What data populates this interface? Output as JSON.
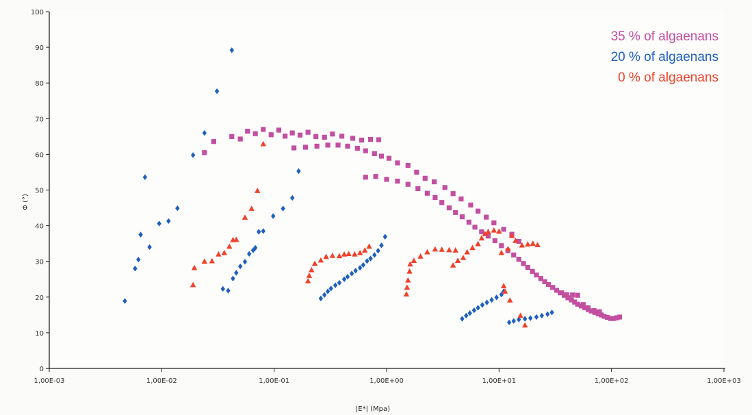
{
  "chart_data": {
    "type": "scatter",
    "title": "",
    "xlabel": "|E*| (Mpa)",
    "ylabel": "Φ (°)",
    "x_scale": "log",
    "xlim": [
      0.001,
      1000
    ],
    "ylim": [
      0,
      100
    ],
    "x_ticks": [
      0.001,
      0.01,
      0.1,
      1,
      10,
      100,
      1000
    ],
    "x_tick_labels": [
      "1,00E-03",
      "1,00E-02",
      "1,00E-01",
      "1,00E+00",
      "1,00E+01",
      "1,00E+02",
      "1,00E+03"
    ],
    "y_ticks": [
      0,
      10,
      20,
      30,
      40,
      50,
      60,
      70,
      80,
      90,
      100
    ],
    "y_tick_labels": [
      "0",
      "10",
      "20",
      "30",
      "40",
      "50",
      "60",
      "70",
      "80",
      "90",
      "100"
    ],
    "grid": false,
    "legend": "top-right",
    "series": [
      {
        "name": "35 % of algaenans",
        "marker": "square",
        "color": "#c24fa0",
        "points": [
          [
            0.024,
            60.5
          ],
          [
            0.029,
            63.6
          ],
          [
            0.042,
            65.0
          ],
          [
            0.05,
            64.3
          ],
          [
            0.058,
            66.5
          ],
          [
            0.068,
            65.8
          ],
          [
            0.08,
            67.0
          ],
          [
            0.094,
            65.5
          ],
          [
            0.11,
            66.8
          ],
          [
            0.125,
            65.1
          ],
          [
            0.145,
            66.0
          ],
          [
            0.17,
            65.4
          ],
          [
            0.2,
            66.2
          ],
          [
            0.235,
            65.0
          ],
          [
            0.28,
            64.8
          ],
          [
            0.33,
            65.7
          ],
          [
            0.4,
            65.1
          ],
          [
            0.5,
            64.5
          ],
          [
            0.6,
            64.0
          ],
          [
            0.72,
            64.2
          ],
          [
            0.85,
            64.1
          ],
          [
            0.15,
            61.8
          ],
          [
            0.19,
            62.0
          ],
          [
            0.24,
            62.3
          ],
          [
            0.3,
            62.6
          ],
          [
            0.37,
            62.6
          ],
          [
            0.45,
            62.3
          ],
          [
            0.55,
            61.7
          ],
          [
            0.65,
            61.0
          ],
          [
            0.78,
            60.2
          ],
          [
            0.9,
            59.5
          ],
          [
            1.05,
            58.9
          ],
          [
            1.25,
            57.6
          ],
          [
            1.55,
            56.9
          ],
          [
            1.85,
            55.0
          ],
          [
            2.2,
            53.3
          ],
          [
            2.65,
            52.3
          ],
          [
            3.3,
            50.7
          ],
          [
            3.9,
            49.0
          ],
          [
            4.6,
            47.5
          ],
          [
            5.6,
            45.8
          ],
          [
            6.5,
            44.1
          ],
          [
            7.7,
            42.4
          ],
          [
            9.0,
            40.8
          ],
          [
            11.0,
            39.0
          ],
          [
            13.0,
            37.6
          ],
          [
            15.0,
            35.6
          ],
          [
            0.65,
            53.6
          ],
          [
            0.8,
            53.8
          ],
          [
            1.0,
            53.0
          ],
          [
            1.25,
            52.5
          ],
          [
            1.55,
            51.6
          ],
          [
            1.9,
            50.4
          ],
          [
            2.3,
            49.1
          ],
          [
            2.7,
            47.9
          ],
          [
            3.1,
            46.5
          ],
          [
            3.6,
            45.0
          ],
          [
            4.1,
            43.7
          ],
          [
            4.7,
            42.5
          ],
          [
            5.4,
            41.0
          ],
          [
            6.1,
            39.6
          ],
          [
            7.0,
            38.3
          ],
          [
            8.0,
            37.1
          ],
          [
            9.2,
            35.8
          ],
          [
            10.5,
            34.4
          ],
          [
            12.0,
            33.0
          ],
          [
            13.5,
            31.8
          ],
          [
            15.0,
            30.6
          ],
          [
            16.5,
            29.4
          ],
          [
            18.0,
            28.3
          ],
          [
            19.8,
            27.2
          ],
          [
            21.5,
            26.2
          ],
          [
            23.5,
            25.2
          ],
          [
            25.5,
            24.3
          ],
          [
            27.5,
            23.5
          ],
          [
            30.0,
            22.7
          ],
          [
            32.5,
            21.9
          ],
          [
            35.0,
            21.2
          ],
          [
            38.0,
            20.5
          ],
          [
            41.0,
            19.8
          ],
          [
            44.0,
            19.2
          ],
          [
            47.0,
            18.6
          ],
          [
            50.0,
            18.0
          ],
          [
            54.0,
            17.5
          ],
          [
            58.0,
            17.0
          ],
          [
            62.0,
            16.5
          ],
          [
            66.0,
            16.1
          ],
          [
            71.0,
            15.7
          ],
          [
            76.0,
            15.3
          ],
          [
            81.0,
            15.0
          ],
          [
            86.0,
            14.6
          ],
          [
            92.0,
            14.3
          ],
          [
            98.0,
            14.0
          ],
          [
            105.0,
            14.0
          ],
          [
            112.0,
            14.2
          ],
          [
            118.0,
            14.4
          ],
          [
            36.0,
            21.2
          ],
          [
            40.0,
            20.7
          ],
          [
            45.0,
            20.6
          ],
          [
            50.0,
            20.5
          ],
          [
            56.0,
            17.9
          ],
          [
            62.0,
            17.0
          ],
          [
            70.0,
            16.2
          ],
          [
            78.0,
            15.9
          ]
        ]
      },
      {
        "name": "20 % of algaenans",
        "marker": "diamond",
        "color": "#1f5fbf",
        "points": [
          [
            0.0047,
            18.9
          ],
          [
            0.0058,
            28.0
          ],
          [
            0.0062,
            30.5
          ],
          [
            0.0065,
            37.5
          ],
          [
            0.0071,
            53.6
          ],
          [
            0.0078,
            34.0
          ],
          [
            0.0095,
            40.6
          ],
          [
            0.0115,
            41.3
          ],
          [
            0.0138,
            44.9
          ],
          [
            0.019,
            59.8
          ],
          [
            0.024,
            66.0
          ],
          [
            0.031,
            77.7
          ],
          [
            0.042,
            89.2
          ],
          [
            0.035,
            22.3
          ],
          [
            0.039,
            21.8
          ],
          [
            0.043,
            25.2
          ],
          [
            0.046,
            26.8
          ],
          [
            0.05,
            28.6
          ],
          [
            0.055,
            29.9
          ],
          [
            0.06,
            32.1
          ],
          [
            0.065,
            33.1
          ],
          [
            0.068,
            33.8
          ],
          [
            0.073,
            38.3
          ],
          [
            0.08,
            38.5
          ],
          [
            0.098,
            42.7
          ],
          [
            0.12,
            44.8
          ],
          [
            0.145,
            47.8
          ],
          [
            0.165,
            55.3
          ],
          [
            0.26,
            19.6
          ],
          [
            0.28,
            20.6
          ],
          [
            0.3,
            21.6
          ],
          [
            0.32,
            22.4
          ],
          [
            0.35,
            23.3
          ],
          [
            0.38,
            24.0
          ],
          [
            0.42,
            25.0
          ],
          [
            0.45,
            25.7
          ],
          [
            0.49,
            26.6
          ],
          [
            0.53,
            27.4
          ],
          [
            0.58,
            28.2
          ],
          [
            0.62,
            29.0
          ],
          [
            0.67,
            30.1
          ],
          [
            0.72,
            30.8
          ],
          [
            0.78,
            31.8
          ],
          [
            0.84,
            33.0
          ],
          [
            0.9,
            34.5
          ],
          [
            0.97,
            36.9
          ],
          [
            4.7,
            13.9
          ],
          [
            5.1,
            14.8
          ],
          [
            5.5,
            15.5
          ],
          [
            6.0,
            16.3
          ],
          [
            6.5,
            17.0
          ],
          [
            7.1,
            17.8
          ],
          [
            7.8,
            18.5
          ],
          [
            8.6,
            19.2
          ],
          [
            9.5,
            19.9
          ],
          [
            10.5,
            20.7
          ],
          [
            11.0,
            21.6
          ],
          [
            12.3,
            12.9
          ],
          [
            13.5,
            13.3
          ],
          [
            15.0,
            13.7
          ],
          [
            17.0,
            13.9
          ],
          [
            19.0,
            14.1
          ],
          [
            21.5,
            14.4
          ],
          [
            24.0,
            14.8
          ],
          [
            27.0,
            15.2
          ],
          [
            29.5,
            15.7
          ]
        ]
      },
      {
        "name": "0 % of algaenans",
        "marker": "triangle",
        "color": "#f0422b",
        "points": [
          [
            0.019,
            23.4
          ],
          [
            0.0195,
            28.2
          ],
          [
            0.024,
            30.0
          ],
          [
            0.028,
            30.1
          ],
          [
            0.032,
            32.0
          ],
          [
            0.036,
            32.4
          ],
          [
            0.04,
            34.2
          ],
          [
            0.043,
            36.0
          ],
          [
            0.046,
            36.1
          ],
          [
            0.055,
            42.3
          ],
          [
            0.063,
            44.8
          ],
          [
            0.071,
            49.8
          ],
          [
            0.08,
            62.9
          ],
          [
            0.2,
            24.5
          ],
          [
            0.205,
            26.0
          ],
          [
            0.215,
            27.6
          ],
          [
            0.23,
            29.4
          ],
          [
            0.26,
            30.3
          ],
          [
            0.29,
            31.3
          ],
          [
            0.33,
            31.6
          ],
          [
            0.38,
            31.5
          ],
          [
            0.42,
            32.0
          ],
          [
            0.46,
            32.1
          ],
          [
            0.52,
            32.0
          ],
          [
            0.58,
            32.4
          ],
          [
            0.64,
            33.1
          ],
          [
            0.7,
            34.2
          ],
          [
            1.5,
            20.8
          ],
          [
            1.52,
            22.7
          ],
          [
            1.55,
            24.7
          ],
          [
            1.6,
            27.2
          ],
          [
            1.62,
            29.2
          ],
          [
            1.75,
            30.2
          ],
          [
            2.0,
            31.4
          ],
          [
            2.3,
            32.6
          ],
          [
            2.7,
            33.4
          ],
          [
            3.1,
            33.3
          ],
          [
            3.6,
            33.2
          ],
          [
            4.1,
            33.1
          ],
          [
            3.9,
            28.9
          ],
          [
            4.3,
            30.2
          ],
          [
            4.8,
            31.0
          ],
          [
            5.2,
            32.6
          ],
          [
            5.8,
            33.8
          ],
          [
            6.5,
            34.9
          ],
          [
            7.0,
            36.5
          ],
          [
            7.5,
            37.7
          ],
          [
            8.0,
            38.3
          ],
          [
            9.0,
            38.7
          ],
          [
            10.0,
            38.4
          ],
          [
            10.5,
            32.4
          ],
          [
            11.0,
            23.1
          ],
          [
            11.3,
            21.6
          ],
          [
            12.0,
            33.5
          ],
          [
            12.5,
            19.1
          ],
          [
            13.0,
            37.2
          ],
          [
            14.0,
            35.8
          ],
          [
            15.5,
            14.8
          ],
          [
            16.0,
            34.5
          ],
          [
            17.0,
            12.1
          ],
          [
            18.0,
            34.8
          ],
          [
            20.0,
            35.0
          ],
          [
            22.0,
            34.6
          ]
        ]
      }
    ]
  }
}
